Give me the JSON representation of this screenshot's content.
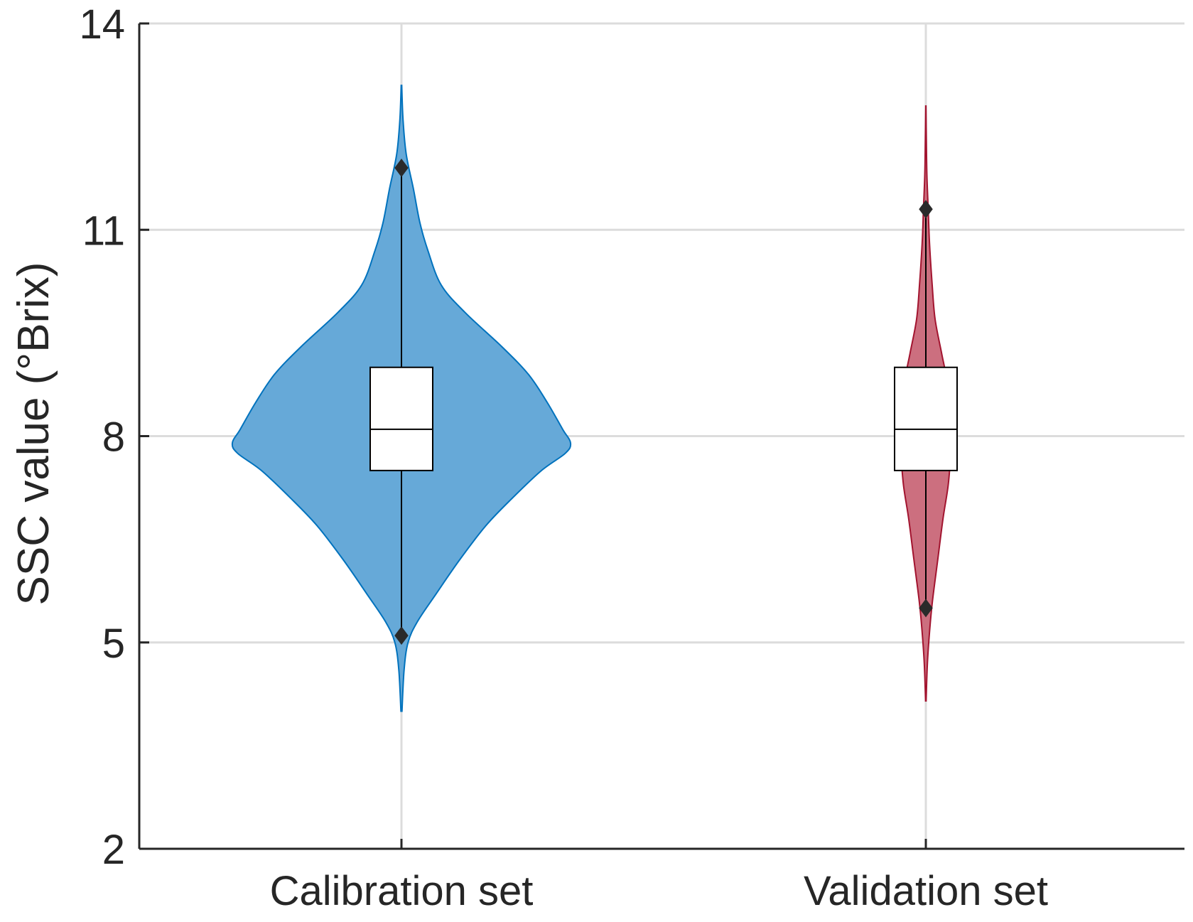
{
  "chart_data": {
    "type": "violin",
    "title": "",
    "xlabel": "",
    "ylabel": "SSC value (°Brix)",
    "ylim": [
      2,
      14
    ],
    "yticks": [
      2,
      5,
      8,
      11,
      14
    ],
    "grid": true,
    "categories": [
      "Calibration set",
      "Validation set"
    ],
    "series": [
      {
        "name": "Calibration set",
        "color": "#0072BD",
        "fill": "#66A9D8",
        "box": {
          "q1": 7.5,
          "median": 8.1,
          "q3": 9.0
        },
        "whisker_low": 5.1,
        "whisker_high": 11.9,
        "min": 4.0,
        "max": 13.1,
        "density": [
          [
            4.0,
            0.002
          ],
          [
            4.6,
            0.01
          ],
          [
            5.0,
            0.025
          ],
          [
            5.3,
            0.06
          ],
          [
            5.7,
            0.13
          ],
          [
            6.2,
            0.22
          ],
          [
            6.7,
            0.32
          ],
          [
            7.1,
            0.42
          ],
          [
            7.5,
            0.53
          ],
          [
            7.75,
            0.62
          ],
          [
            7.9,
            0.64
          ],
          [
            8.1,
            0.61
          ],
          [
            8.5,
            0.55
          ],
          [
            8.9,
            0.48
          ],
          [
            9.3,
            0.38
          ],
          [
            9.8,
            0.24
          ],
          [
            10.2,
            0.15
          ],
          [
            10.7,
            0.1
          ],
          [
            11.1,
            0.07
          ],
          [
            11.6,
            0.045
          ],
          [
            12.1,
            0.018
          ],
          [
            12.6,
            0.006
          ],
          [
            13.1,
            0.001
          ]
        ]
      },
      {
        "name": "Validation set",
        "color": "#A2142F",
        "fill": "#CC6F7F",
        "box": {
          "q1": 7.5,
          "median": 8.1,
          "q3": 9.0
        },
        "whisker_low": 5.5,
        "whisker_high": 11.3,
        "min": 4.15,
        "max": 12.8,
        "density": [
          [
            4.15,
            0.001
          ],
          [
            4.7,
            0.006
          ],
          [
            5.2,
            0.015
          ],
          [
            5.6,
            0.025
          ],
          [
            6.2,
            0.045
          ],
          [
            6.8,
            0.065
          ],
          [
            7.3,
            0.085
          ],
          [
            7.8,
            0.095
          ],
          [
            8.1,
            0.097
          ],
          [
            8.7,
            0.085
          ],
          [
            9.2,
            0.06
          ],
          [
            9.7,
            0.035
          ],
          [
            10.2,
            0.024
          ],
          [
            10.8,
            0.014
          ],
          [
            11.3,
            0.009
          ],
          [
            11.8,
            0.004
          ],
          [
            12.3,
            0.002
          ],
          [
            12.8,
            0.0005
          ]
        ]
      }
    ]
  }
}
